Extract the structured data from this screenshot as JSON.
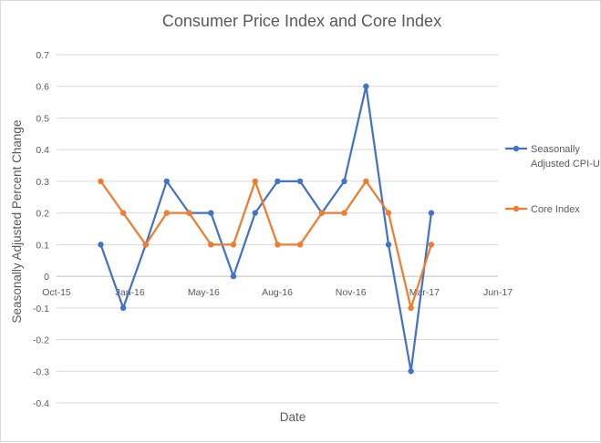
{
  "chart_data": {
    "type": "line",
    "title": "Consumer Price Index and Core Index",
    "xlabel": "Date",
    "ylabel": "Seasonally Adjusted Percent Change",
    "ylim": [
      -0.4,
      0.7
    ],
    "yticks": [
      "0.7",
      "0.6",
      "0.5",
      "0.4",
      "0.3",
      "0.2",
      "0.1",
      "0",
      "-0.1",
      "-0.2",
      "-0.3",
      "-0.4"
    ],
    "xlim": [
      "2015-10-01",
      "2017-06-01"
    ],
    "xticks": [
      "Oct-15",
      "Jan-16",
      "May-16",
      "Aug-16",
      "Nov-16",
      "Mar-17",
      "Jun-17"
    ],
    "grid": "horizontal",
    "legend_position": "right",
    "x": [
      "2015-12",
      "2016-01",
      "2016-02",
      "2016-03",
      "2016-04",
      "2016-05",
      "2016-06",
      "2016-07",
      "2016-08",
      "2016-09",
      "2016-10",
      "2016-11",
      "2016-12",
      "2017-01",
      "2017-02",
      "2017-03",
      "2017-04"
    ],
    "series": [
      {
        "name": "Seasonally Adjusted CPI-U",
        "legend_lines": [
          "Seasonally",
          "Adjusted CPI-U"
        ],
        "color": "#4472C4",
        "values": [
          0.1,
          -0.1,
          0.1,
          0.3,
          0.2,
          0.2,
          0.0,
          0.2,
          0.3,
          0.3,
          0.2,
          0.3,
          0.6,
          0.1,
          -0.3,
          0.2,
          null
        ]
      },
      {
        "name": "Core Index",
        "legend_lines": [
          "Core Index"
        ],
        "color": "#ED7D31",
        "values": [
          0.3,
          0.2,
          0.1,
          0.2,
          0.2,
          0.1,
          0.1,
          0.3,
          0.1,
          0.1,
          0.2,
          0.2,
          0.3,
          0.2,
          -0.1,
          0.1,
          null
        ]
      }
    ]
  }
}
